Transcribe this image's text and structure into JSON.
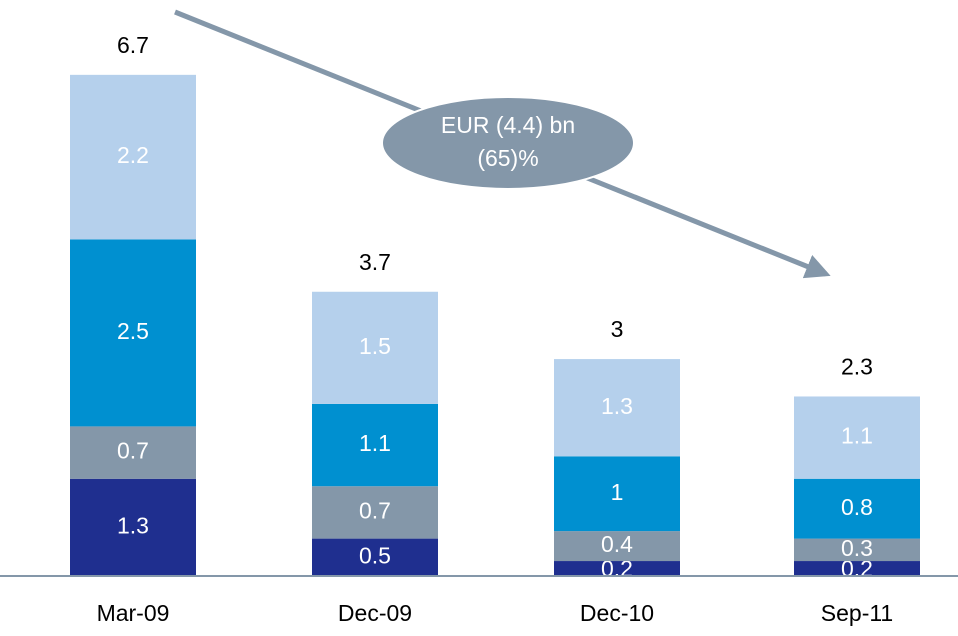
{
  "chart_data": {
    "type": "stacked-bar",
    "categories": [
      "Mar-09",
      "Dec-09",
      "Dec-10",
      "Sep-11"
    ],
    "series": [
      {
        "color": "#1f2f8f",
        "values": [
          1.3,
          0.5,
          0.2,
          0.2
        ]
      },
      {
        "color": "#8497a9",
        "values": [
          0.7,
          0.7,
          0.4,
          0.3
        ]
      },
      {
        "color": "#0090d0",
        "values": [
          2.5,
          1.1,
          1.0,
          0.8
        ]
      },
      {
        "color": "#b5d0ec",
        "values": [
          2.2,
          1.5,
          1.3,
          1.1
        ]
      }
    ],
    "totals": [
      6.7,
      3.7,
      3.0,
      2.3
    ],
    "annotation": [
      "EUR (4.4) bn",
      "(65)%"
    ]
  }
}
